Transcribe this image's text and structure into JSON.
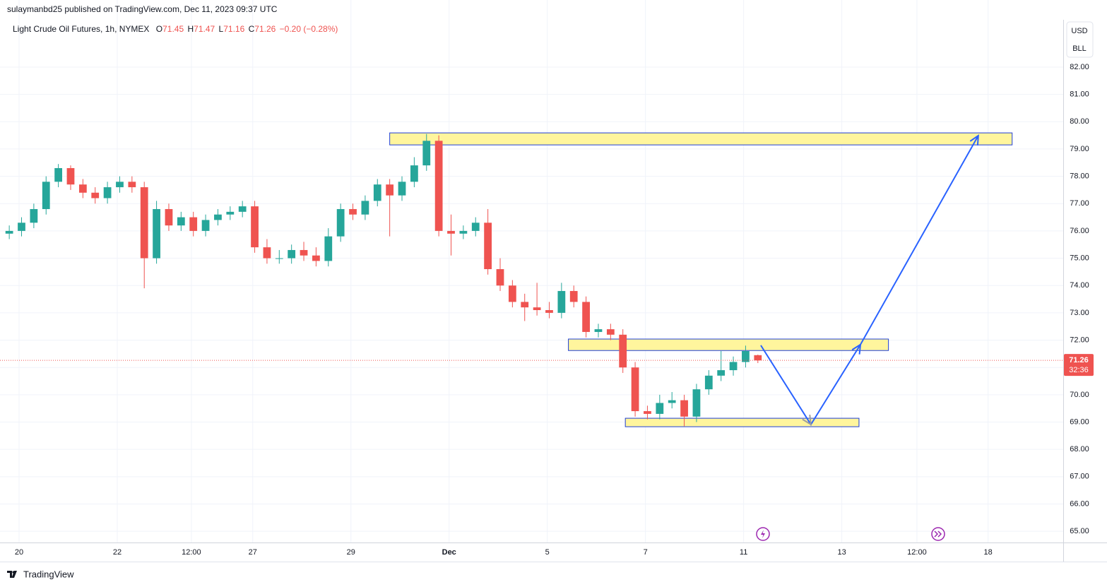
{
  "chart_data": {
    "type": "candlestick",
    "publisher": "sulaymanbd25 published on TradingView.com, Dec 11, 2023 09:37 UTC",
    "title": "Light Crude Oil Futures, 1h, NYMEX",
    "ohlc_legend": [
      {
        "label": "O",
        "value": "71.45"
      },
      {
        "label": "H",
        "value": "71.47"
      },
      {
        "label": "L",
        "value": "71.16"
      },
      {
        "label": "C",
        "value": "71.26"
      }
    ],
    "change": "−0.20 (−0.28%)",
    "currency": "USD",
    "unit": "BLL",
    "brand": "TradingView",
    "up_color": "#26a69a",
    "down_color": "#ef5350",
    "zone_color": "#fff59d",
    "zone_border": "#1e3fd8",
    "arrow_color": "#2962ff",
    "x": [
      -0.2,
      0.05,
      0.3,
      0.55,
      0.8,
      1.05,
      1.3,
      1.55,
      1.8,
      2.05,
      2.3,
      2.55,
      2.8,
      3.05,
      3.3,
      3.55,
      3.8,
      4.05,
      4.3,
      4.55,
      4.8,
      5.05,
      5.3,
      5.55,
      5.8,
      6.05,
      6.3,
      6.55,
      6.8,
      7.05,
      7.3,
      7.55,
      7.8,
      8.05,
      8.3,
      8.55,
      8.8,
      9.05,
      9.3,
      9.55,
      9.8,
      10.05,
      10.3,
      10.55,
      10.8,
      11.05,
      11.3,
      11.55,
      11.8,
      12.05,
      12.3,
      12.55,
      12.8,
      13.05,
      13.3,
      13.55,
      13.8,
      14.05,
      14.3,
      14.55,
      14.8,
      15.05
    ],
    "open": [
      75.9,
      76.0,
      76.3,
      76.8,
      77.8,
      78.3,
      77.7,
      77.4,
      77.2,
      77.6,
      77.8,
      77.6,
      75.0,
      76.8,
      76.2,
      76.5,
      76.0,
      76.4,
      76.6,
      76.7,
      76.9,
      75.4,
      75.0,
      75.0,
      75.3,
      75.1,
      74.9,
      75.8,
      76.8,
      76.6,
      77.1,
      77.7,
      77.3,
      77.8,
      78.4,
      79.3,
      76.0,
      75.9,
      76.0,
      76.3,
      74.6,
      74.0,
      73.4,
      73.2,
      73.1,
      73.0,
      73.8,
      73.4,
      72.3,
      72.4,
      72.2,
      71.0,
      69.4,
      69.3,
      69.7,
      69.8,
      69.2,
      70.2,
      70.7,
      70.9,
      71.2,
      71.45
    ],
    "high": [
      76.2,
      76.5,
      77.0,
      78.0,
      78.45,
      78.4,
      77.9,
      77.6,
      77.8,
      78.0,
      78.0,
      77.8,
      77.1,
      77.0,
      76.7,
      76.7,
      76.6,
      76.8,
      76.9,
      77.1,
      77.1,
      75.7,
      75.3,
      75.5,
      75.6,
      75.4,
      76.1,
      77.0,
      77.0,
      77.3,
      77.9,
      77.9,
      78.0,
      78.7,
      79.55,
      79.5,
      76.6,
      76.2,
      76.5,
      76.8,
      75.0,
      74.2,
      73.7,
      74.1,
      73.4,
      74.1,
      74.0,
      73.6,
      72.6,
      72.6,
      72.4,
      71.2,
      69.6,
      70.0,
      70.1,
      70.0,
      70.4,
      70.9,
      71.6,
      71.4,
      71.8,
      71.47
    ],
    "low": [
      75.7,
      75.8,
      76.1,
      76.6,
      77.6,
      77.5,
      77.2,
      77.0,
      77.0,
      77.4,
      77.4,
      73.9,
      74.8,
      76.0,
      76.0,
      75.8,
      75.8,
      76.2,
      76.4,
      76.5,
      75.2,
      74.8,
      74.8,
      74.8,
      74.9,
      74.7,
      74.7,
      75.6,
      76.4,
      76.4,
      76.9,
      75.8,
      77.1,
      77.6,
      78.2,
      75.8,
      75.1,
      75.7,
      75.8,
      74.4,
      73.8,
      73.2,
      72.7,
      72.9,
      72.8,
      72.8,
      73.2,
      72.1,
      72.1,
      72.0,
      70.8,
      69.2,
      69.1,
      69.1,
      69.5,
      68.85,
      69.0,
      70.0,
      70.5,
      70.7,
      71.0,
      71.16
    ],
    "close": [
      76.0,
      76.3,
      76.8,
      77.8,
      78.3,
      77.7,
      77.4,
      77.2,
      77.6,
      77.8,
      77.6,
      75.0,
      76.8,
      76.2,
      76.5,
      76.0,
      76.4,
      76.6,
      76.7,
      76.9,
      75.4,
      75.0,
      75.0,
      75.3,
      75.1,
      74.9,
      75.8,
      76.8,
      76.6,
      77.1,
      77.7,
      77.3,
      77.8,
      78.4,
      79.3,
      76.0,
      75.9,
      76.0,
      76.3,
      74.6,
      74.0,
      73.4,
      73.2,
      73.1,
      73.0,
      73.8,
      73.4,
      72.3,
      72.4,
      72.2,
      71.0,
      69.4,
      69.3,
      69.7,
      69.8,
      69.2,
      70.2,
      70.7,
      70.9,
      71.2,
      71.6,
      71.26
    ],
    "last_price": 71.26,
    "countdown": "32:36",
    "zones": [
      {
        "x": [
          7.55,
          20.23
        ],
        "y": [
          79.15,
          79.59
        ]
      },
      {
        "x": [
          11.19,
          17.71
        ],
        "y": [
          71.62,
          72.04
        ]
      },
      {
        "x": [
          12.35,
          17.11
        ],
        "y": [
          68.83,
          69.14
        ]
      }
    ],
    "projection": {
      "x": [
        15.11,
        16.13,
        17.14,
        19.54
      ],
      "y": [
        71.81,
        68.91,
        71.84,
        79.49
      ]
    },
    "xlim": [
      -0.245,
      21.27
    ],
    "ylim": [
      64.59,
      83.68
    ],
    "xticks": [
      {
        "value": 0,
        "label": "20"
      },
      {
        "value": 2.0,
        "label": "22"
      },
      {
        "value": 3.51,
        "label": "12:00"
      },
      {
        "value": 4.76,
        "label": "27"
      },
      {
        "value": 6.76,
        "label": "29"
      },
      {
        "value": 8.76,
        "label": "Dec"
      },
      {
        "value": 10.76,
        "label": "5"
      },
      {
        "value": 12.76,
        "label": "7"
      },
      {
        "value": 14.76,
        "label": "11"
      },
      {
        "value": 16.76,
        "label": "13"
      },
      {
        "value": 18.29,
        "label": "12:00"
      },
      {
        "value": 19.74,
        "label": "18"
      }
    ],
    "yticks": [
      {
        "value": 65,
        "label": "65.00"
      },
      {
        "value": 66,
        "label": "66.00"
      },
      {
        "value": 67,
        "label": "67.00"
      },
      {
        "value": 68,
        "label": "68.00"
      },
      {
        "value": 69,
        "label": "69.00"
      },
      {
        "value": 70,
        "label": "70.00"
      },
      {
        "value": 71,
        "label": "71.00"
      },
      {
        "value": 72,
        "label": "72.00"
      },
      {
        "value": 73,
        "label": "73.00"
      },
      {
        "value": 74,
        "label": "74.00"
      },
      {
        "value": 75,
        "label": "75.00"
      },
      {
        "value": 76,
        "label": "76.00"
      },
      {
        "value": 77,
        "label": "77.00"
      },
      {
        "value": 78,
        "label": "78.00"
      },
      {
        "value": 79,
        "label": "79.00"
      },
      {
        "value": 80,
        "label": "80.00"
      },
      {
        "value": 81,
        "label": "81.00"
      },
      {
        "value": 82,
        "label": "82.00"
      }
    ],
    "grid": true
  }
}
